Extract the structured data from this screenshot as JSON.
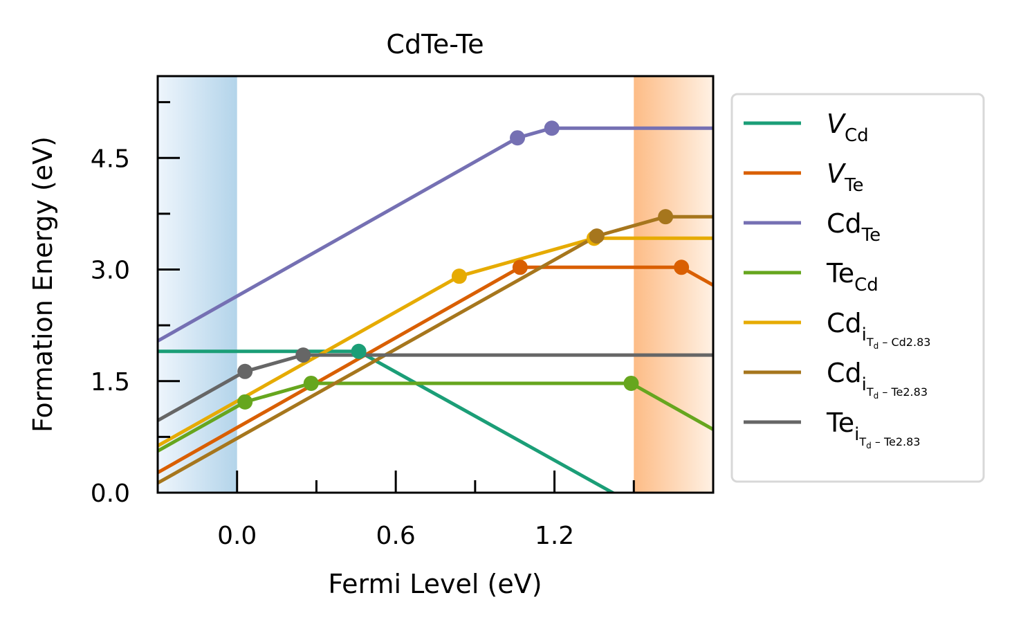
{
  "chart_data": {
    "type": "line",
    "title": "CdTe-Te",
    "xlabel": "Fermi Level (eV)",
    "ylabel": "Formation Energy (eV)",
    "xlim": [
      -0.3,
      1.8
    ],
    "ylim": [
      0.0,
      5.6
    ],
    "x_ticks_major": [
      0.0,
      0.6,
      1.2
    ],
    "x_tick_labels": [
      "0.0",
      "0.6",
      "1.2"
    ],
    "x_ticks_minor": [
      0.3,
      0.9,
      1.5
    ],
    "y_ticks_major": [
      0.0,
      1.5,
      3.0,
      4.5
    ],
    "y_tick_labels": [
      "0.0",
      "1.5",
      "3.0",
      "4.5"
    ],
    "y_ticks_minor": [
      0.75,
      2.25,
      3.75,
      5.25
    ],
    "grid": false,
    "legend_position": "outside-right",
    "band_regions": [
      {
        "name": "valence band",
        "x_range": [
          -0.3,
          0.0
        ],
        "color": "#b3d4ea"
      },
      {
        "name": "conduction band",
        "x_range": [
          1.5,
          1.8
        ],
        "color": "#fdbc86"
      }
    ],
    "series": [
      {
        "name": "V_Cd",
        "legend": {
          "main": "V",
          "sub": "Cd",
          "subsub": "",
          "suffix": "",
          "italic": true
        },
        "color": "#1b9e77",
        "x": [
          -0.3,
          0.46,
          1.42,
          1.8
        ],
        "y": [
          1.9,
          1.9,
          0.0,
          -0.76
        ],
        "markers": [
          0.46
        ]
      },
      {
        "name": "V_Te",
        "legend": {
          "main": "V",
          "sub": "Te",
          "subsub": "",
          "suffix": "",
          "italic": true
        },
        "color": "#d95f02",
        "x": [
          -0.3,
          1.07,
          1.68,
          1.8
        ],
        "y": [
          0.27,
          3.03,
          3.03,
          2.79
        ],
        "markers": [
          1.07,
          1.68
        ]
      },
      {
        "name": "Cd_Te",
        "legend": {
          "main": "Cd",
          "sub": "Te",
          "subsub": "",
          "suffix": "",
          "italic": false
        },
        "color": "#7570b3",
        "x": [
          -0.3,
          1.06,
          1.19,
          1.8
        ],
        "y": [
          2.04,
          4.77,
          4.9,
          4.9
        ],
        "markers": [
          1.06,
          1.19
        ]
      },
      {
        "name": "Te_Cd",
        "legend": {
          "main": "Te",
          "sub": "Cd",
          "subsub": "",
          "suffix": "",
          "italic": false
        },
        "color": "#66a61e",
        "x": [
          -0.3,
          0.03,
          0.28,
          1.49,
          1.8
        ],
        "y": [
          0.56,
          1.22,
          1.47,
          1.47,
          0.85
        ],
        "markers": [
          0.03,
          0.28,
          1.49
        ]
      },
      {
        "name": "Cd_i_Td-Cd2.83",
        "legend": {
          "main": "Cd",
          "sub": "i",
          "subsub": "T",
          "subsubsub": "d",
          "suffix": " – Cd2.83",
          "italic": false
        },
        "color": "#e6ab02",
        "x": [
          -0.3,
          0.84,
          1.35,
          1.8
        ],
        "y": [
          0.63,
          2.91,
          3.42,
          3.42
        ],
        "markers": [
          0.84,
          1.35
        ]
      },
      {
        "name": "Cd_i_Td-Te2.83",
        "legend": {
          "main": "Cd",
          "sub": "i",
          "subsub": "T",
          "subsubsub": "d",
          "suffix": " – Te2.83",
          "italic": false
        },
        "color": "#a6761d",
        "x": [
          -0.3,
          1.36,
          1.62,
          1.8
        ],
        "y": [
          0.13,
          3.45,
          3.71,
          3.71
        ],
        "markers": [
          1.36,
          1.62
        ]
      },
      {
        "name": "Te_i_Td-Te2.83",
        "legend": {
          "main": "Te",
          "sub": "i",
          "subsub": "T",
          "subsubsub": "d",
          "suffix": " – Te2.83",
          "italic": false
        },
        "color": "#666666",
        "x": [
          -0.3,
          0.03,
          0.25,
          1.8
        ],
        "y": [
          0.97,
          1.63,
          1.85,
          1.85
        ],
        "markers": [
          0.03,
          0.25
        ]
      }
    ]
  }
}
